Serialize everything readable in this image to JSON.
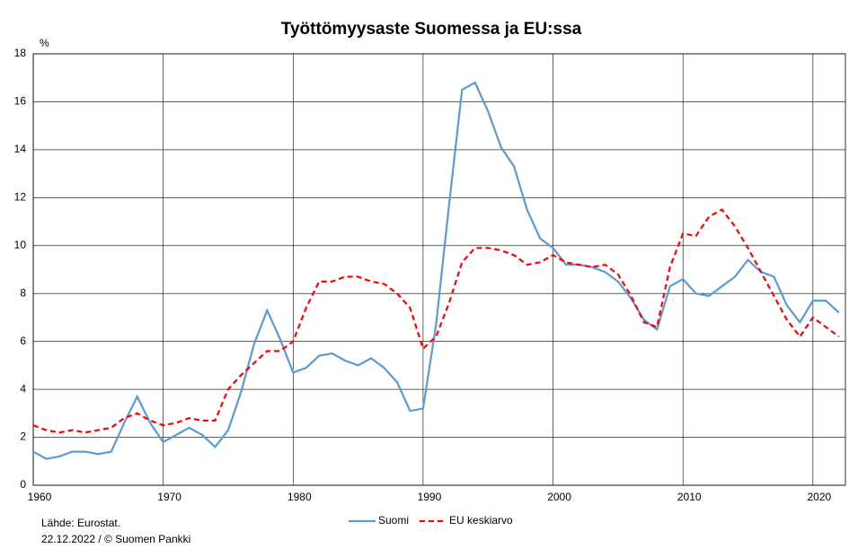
{
  "chart_data": {
    "type": "line",
    "title": "Työttömyysaste Suomessa ja EU:ssa",
    "y_label": "%",
    "source": "Lähde: Eurostat.",
    "footer": "22.12.2022  / © Suomen Pankki",
    "x": [
      1960,
      1961,
      1962,
      1963,
      1964,
      1965,
      1966,
      1967,
      1968,
      1969,
      1970,
      1971,
      1972,
      1973,
      1974,
      1975,
      1976,
      1977,
      1978,
      1979,
      1980,
      1981,
      1982,
      1983,
      1984,
      1985,
      1986,
      1987,
      1988,
      1989,
      1990,
      1991,
      1992,
      1993,
      1994,
      1995,
      1996,
      1997,
      1998,
      1999,
      2000,
      2001,
      2002,
      2003,
      2004,
      2005,
      2006,
      2007,
      2008,
      2009,
      2010,
      2011,
      2012,
      2013,
      2014,
      2015,
      2016,
      2017,
      2018,
      2019,
      2020,
      2021,
      2022
    ],
    "series": [
      {
        "name": "Suomi",
        "color": "#5b9bd5",
        "dash": false,
        "values": [
          1.4,
          1.1,
          1.2,
          1.4,
          1.4,
          1.3,
          1.4,
          2.6,
          3.7,
          2.6,
          1.8,
          2.1,
          2.4,
          2.1,
          1.6,
          2.3,
          3.9,
          5.9,
          7.3,
          6.1,
          4.7,
          4.9,
          5.4,
          5.5,
          5.2,
          5.0,
          5.3,
          4.9,
          4.3,
          3.1,
          3.2,
          6.7,
          11.7,
          16.5,
          16.8,
          15.6,
          14.1,
          13.3,
          11.5,
          10.3,
          9.9,
          9.2,
          9.2,
          9.1,
          8.9,
          8.5,
          7.8,
          6.9,
          6.5,
          8.3,
          8.6,
          8.0,
          7.9,
          8.3,
          8.7,
          9.4,
          8.9,
          8.7,
          7.5,
          6.8,
          7.7,
          7.7,
          7.2
        ]
      },
      {
        "name": "EU keskiarvo",
        "color": "#ff0000",
        "dash": true,
        "values": [
          2.5,
          2.3,
          2.2,
          2.3,
          2.2,
          2.3,
          2.4,
          2.8,
          3.0,
          2.7,
          2.5,
          2.6,
          2.8,
          2.7,
          2.7,
          4.0,
          4.6,
          5.1,
          5.6,
          5.6,
          6.0,
          7.4,
          8.5,
          8.5,
          8.7,
          8.7,
          8.5,
          8.4,
          8.0,
          7.4,
          5.7,
          6.2,
          7.6,
          9.3,
          9.9,
          9.9,
          9.8,
          9.6,
          9.2,
          9.3,
          9.6,
          9.3,
          9.2,
          9.1,
          9.2,
          8.8,
          7.9,
          6.8,
          6.6,
          9.1,
          10.5,
          10.4,
          11.2,
          11.5,
          10.8,
          9.9,
          8.9,
          7.9,
          6.9,
          6.2,
          7.0,
          6.6,
          6.2
        ]
      }
    ],
    "xlim": [
      1960,
      2022.5
    ],
    "xticks": [
      1960,
      1970,
      1980,
      1990,
      2000,
      2010,
      2020
    ],
    "ylim": [
      0,
      18
    ],
    "yticks": [
      0,
      2,
      4,
      6,
      8,
      10,
      12,
      14,
      16,
      18
    ],
    "grid": true,
    "legend": "bottom"
  }
}
